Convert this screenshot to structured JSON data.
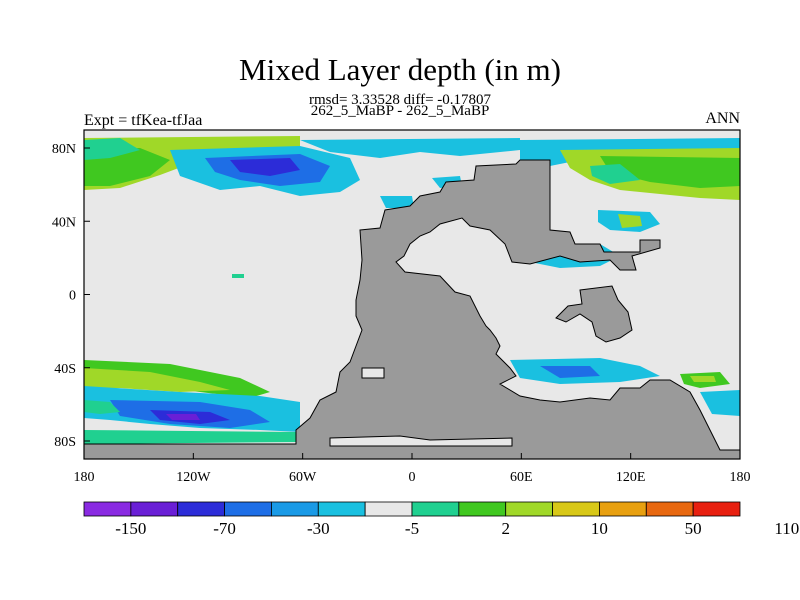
{
  "map": {
    "title": "Mixed Layer depth (in m)",
    "stats_line": "rmsd= 3.33528 diff= -0.17807",
    "runs_line": "262_5_MaBP - 262_5_MaBP",
    "left_label": "Expt = tfKea-tfJaa",
    "right_label": "ANN",
    "x_ticks": [
      "180",
      "120W",
      "60W",
      "0",
      "60E",
      "120E",
      "180"
    ],
    "y_ticks": [
      "80N",
      "40N",
      "0",
      "40S",
      "80S"
    ],
    "colors": {
      "land": "#9a9a9a",
      "missing": "#e8e8e8"
    }
  },
  "colorbar": {
    "colors": [
      "#8a2be2",
      "#6a1fd6",
      "#2c2cd8",
      "#1e6ee6",
      "#1a9ae6",
      "#1ac0e0",
      "#e8e8e8",
      "#20d090",
      "#40c820",
      "#a0d828",
      "#d8c818",
      "#e8a010",
      "#e86810",
      "#e82010"
    ],
    "labels": [
      "-150",
      "-70",
      "-30",
      "-5",
      "2",
      "10",
      "50",
      "110"
    ]
  }
}
